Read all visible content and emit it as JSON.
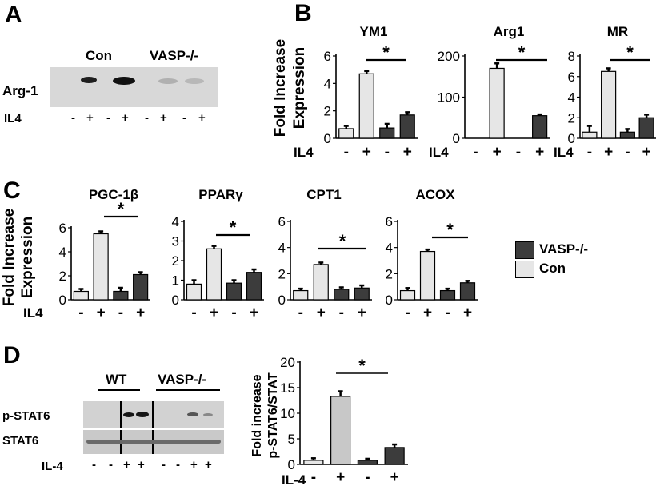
{
  "panels": {
    "A": "A",
    "B": "B",
    "C": "C",
    "D": "D"
  },
  "colors": {
    "con": "#e6e6e6",
    "vasp": "#3c3c3c",
    "grey": "#c8c8c8",
    "band": "#1e1e1e",
    "blot": "#d0d0d0"
  },
  "blotA": {
    "groups": [
      "Con",
      "VASP-/-"
    ],
    "row_label": "Arg-1",
    "treatment_label": "IL4",
    "lanes": [
      "-",
      "+",
      "-",
      "+",
      "-",
      "+",
      "-",
      "+"
    ],
    "band_intensity": [
      0,
      0.9,
      0,
      1,
      0.08,
      0.12,
      0.08,
      0.1
    ]
  },
  "yaxis_label_line1": "Fold Increase",
  "yaxis_label_line2": "Expression",
  "treatment_label": "IL4",
  "xticks": [
    "-",
    "+",
    "-",
    "+"
  ],
  "legend": {
    "vasp": "VASP-/-",
    "con": "Con"
  },
  "blotD": {
    "groups": [
      "WT",
      "VASP-/-"
    ],
    "rows": [
      "p-STAT6",
      "STAT6"
    ],
    "treatment_label": "IL-4",
    "lanes": [
      "-",
      "-",
      "+",
      "+",
      "-",
      "-",
      "+",
      "+"
    ]
  },
  "chart_data": [
    {
      "type": "bar",
      "panel": "B",
      "title": "YM1",
      "categories": [
        "-",
        "+",
        "-",
        "+"
      ],
      "series_groups": [
        "Con",
        "Con",
        "VASP-/-",
        "VASP-/-"
      ],
      "values": [
        0.7,
        4.7,
        0.75,
        1.7
      ],
      "errors": [
        0.2,
        0.2,
        0.3,
        0.2
      ],
      "ylim": [
        0,
        6
      ],
      "yticks": [
        0,
        2,
        4,
        6
      ],
      "significance": "*",
      "ylabel": "Fold Increase Expression",
      "xlabel": "IL4"
    },
    {
      "type": "bar",
      "panel": "B",
      "title": "Arg1",
      "categories": [
        "-",
        "+",
        "-",
        "+"
      ],
      "series_groups": [
        "Con",
        "Con",
        "VASP-/-",
        "VASP-/-"
      ],
      "values": [
        0,
        170,
        0,
        55
      ],
      "errors": [
        0,
        12,
        0,
        3
      ],
      "ylim": [
        0,
        200
      ],
      "yticks": [
        0,
        100,
        200
      ],
      "significance": "*",
      "xlabel": "IL4"
    },
    {
      "type": "bar",
      "panel": "B",
      "title": "MR",
      "categories": [
        "-",
        "+",
        "-",
        "+"
      ],
      "series_groups": [
        "Con",
        "Con",
        "VASP-/-",
        "VASP-/-"
      ],
      "values": [
        0.6,
        6.5,
        0.6,
        2.0
      ],
      "errors": [
        0.6,
        0.3,
        0.3,
        0.3
      ],
      "ylim": [
        0,
        8
      ],
      "yticks": [
        0,
        2,
        4,
        6,
        8
      ],
      "significance": "*",
      "xlabel": "IL4"
    },
    {
      "type": "bar",
      "panel": "C",
      "title": "PGC-1β",
      "categories": [
        "-",
        "+",
        "-",
        "+"
      ],
      "series_groups": [
        "Con",
        "Con",
        "VASP-/-",
        "VASP-/-"
      ],
      "values": [
        0.7,
        5.5,
        0.7,
        2.1
      ],
      "errors": [
        0.2,
        0.2,
        0.3,
        0.2
      ],
      "ylim": [
        0,
        6
      ],
      "yticks": [
        0,
        2,
        4,
        6
      ],
      "significance": "*",
      "ylabel": "Fold Increase Expression",
      "xlabel": "IL4"
    },
    {
      "type": "bar",
      "panel": "C",
      "title": "PPARγ",
      "categories": [
        "-",
        "+",
        "-",
        "+"
      ],
      "series_groups": [
        "Con",
        "Con",
        "VASP-/-",
        "VASP-/-"
      ],
      "values": [
        0.8,
        2.6,
        0.85,
        1.4
      ],
      "errors": [
        0.2,
        0.15,
        0.15,
        0.15
      ],
      "ylim": [
        0,
        4
      ],
      "yticks": [
        0,
        1,
        2,
        3,
        4
      ],
      "significance": "*",
      "xlabel": "IL4"
    },
    {
      "type": "bar",
      "panel": "C",
      "title": "CPT1",
      "categories": [
        "-",
        "+",
        "-",
        "+"
      ],
      "series_groups": [
        "Con",
        "Con",
        "VASP-/-",
        "VASP-/-"
      ],
      "values": [
        0.7,
        2.7,
        0.8,
        0.9
      ],
      "errors": [
        0.15,
        0.15,
        0.15,
        0.2
      ],
      "ylim": [
        0,
        6
      ],
      "yticks": [
        0,
        2,
        4,
        6
      ],
      "significance": "*",
      "xlabel": "IL4"
    },
    {
      "type": "bar",
      "panel": "C",
      "title": "ACOX",
      "categories": [
        "-",
        "+",
        "-",
        "+"
      ],
      "series_groups": [
        "Con",
        "Con",
        "VASP-/-",
        "VASP-/-"
      ],
      "values": [
        0.7,
        3.7,
        0.7,
        1.3
      ],
      "errors": [
        0.2,
        0.15,
        0.15,
        0.15
      ],
      "ylim": [
        0,
        6
      ],
      "yticks": [
        0,
        2,
        4,
        6
      ],
      "significance": "*",
      "xlabel": "IL4"
    },
    {
      "type": "bar",
      "panel": "D",
      "title": "",
      "categories": [
        "-",
        "+",
        "-",
        "+"
      ],
      "series_groups": [
        "WT",
        "WT",
        "VASP-/-",
        "VASP-/-"
      ],
      "values": [
        0.8,
        13.3,
        0.8,
        3.3
      ],
      "errors": [
        0.4,
        1.0,
        0.3,
        0.6
      ],
      "ylim": [
        0,
        20
      ],
      "yticks": [
        0,
        5,
        10,
        15,
        20
      ],
      "significance": "*",
      "ylabel": "Fold increase p-STAT6/STAT",
      "xlabel": "IL-4"
    }
  ]
}
